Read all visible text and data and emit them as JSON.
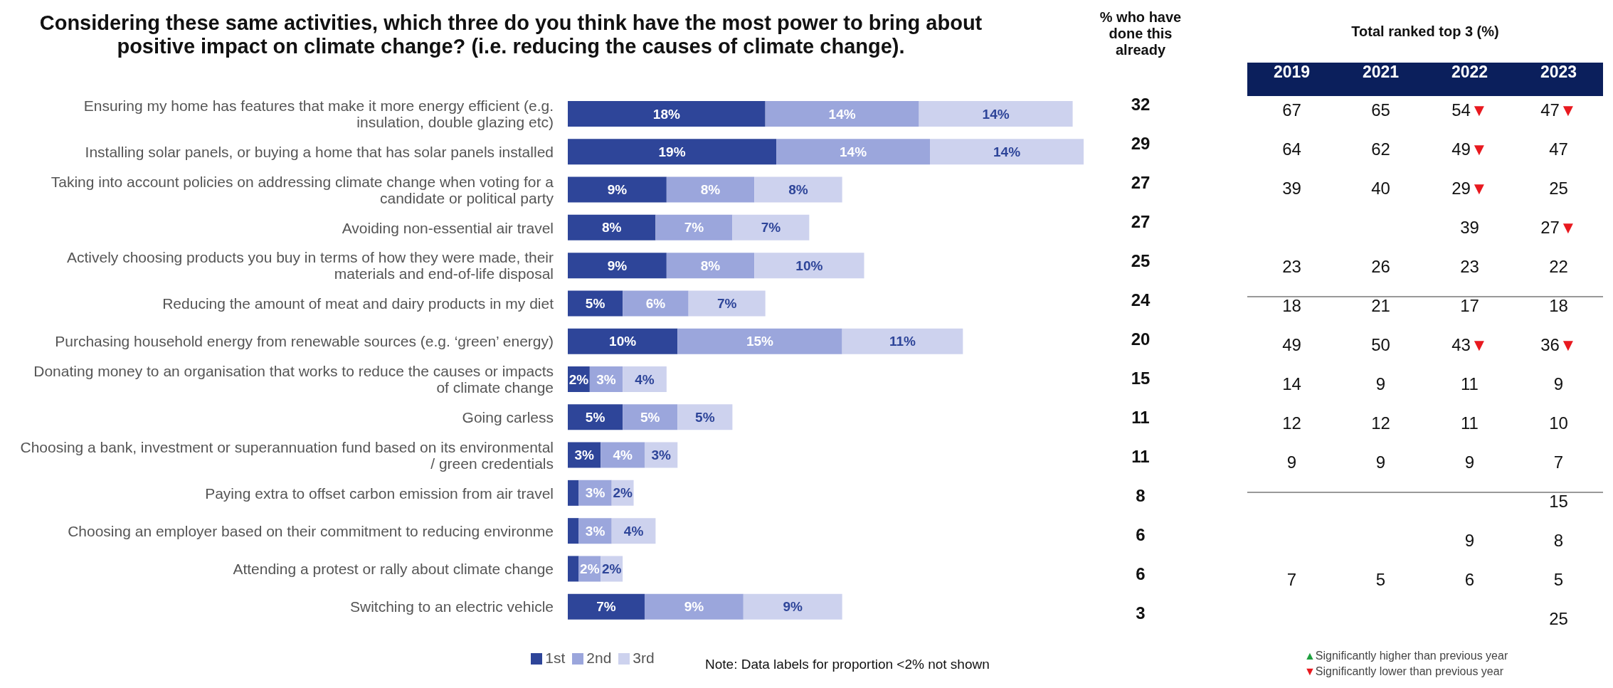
{
  "chart_data": [
    {
      "type": "bar",
      "orientation": "horizontal",
      "stacked": true,
      "legend": "bottom",
      "title": "Considering these same activities, which three do you think have the most power to bring about positive impact on climate change? (i.e. reducing the causes of climate change).",
      "categories": [
        "Ensuring my home has features that make it more energy efficient (e.g. insulation, double glazing etc)",
        "Installing solar panels, or buying a home that has solar panels installed",
        "Taking into account policies on addressing climate change when voting for a candidate or political party",
        "Avoiding non-essential air travel",
        "Actively choosing products you buy in terms of how they were made, their materials and end-of-life disposal",
        "Reducing the amount of meat and dairy products in my diet",
        "Purchasing household energy from renewable sources (e.g. ‘green’ energy)",
        "Donating money to an organisation that works to reduce the causes or impacts of climate change",
        "Going carless",
        "Choosing a bank, investment or superannuation fund based on its environmental / green credentials",
        "Paying extra to offset carbon emission from air travel",
        "Choosing an employer based on their commitment to reducing environme",
        "Attending a protest or rally about climate change",
        "Switching to an electric vehicle"
      ],
      "series": [
        {
          "name": "1st",
          "color": "#2e4599",
          "values": [
            18,
            19,
            9,
            8,
            9,
            5,
            10,
            2,
            5,
            3,
            1,
            1,
            1,
            7
          ],
          "value_labels": [
            "18%",
            "19%",
            "9%",
            "8%",
            "9%",
            "5%",
            "10%",
            "2%",
            "5%",
            "3%",
            null,
            null,
            null,
            "7%"
          ]
        },
        {
          "name": "2nd",
          "color": "#9ba6dc",
          "values": [
            14,
            14,
            8,
            7,
            8,
            6,
            15,
            3,
            5,
            4,
            3,
            3,
            2,
            9
          ],
          "value_labels": [
            "14%",
            "14%",
            "8%",
            "7%",
            "8%",
            "6%",
            "15%",
            "3%",
            "5%",
            "4%",
            "3%",
            "3%",
            "2%",
            "9%"
          ]
        },
        {
          "name": "3rd",
          "color": "#cdd2ee",
          "values": [
            14,
            14,
            8,
            7,
            10,
            7,
            11,
            4,
            5,
            3,
            2,
            4,
            2,
            9
          ],
          "value_labels": [
            "14%",
            "14%",
            "8%",
            "7%",
            "10%",
            "7%",
            "11%",
            "4%",
            "5%",
            "3%",
            "2%",
            "4%",
            "2%",
            "9%"
          ]
        }
      ],
      "annotations": [
        "Note: Data labels for proportion <2% not shown"
      ]
    },
    {
      "type": "other",
      "title": "% who have done this already",
      "data_labels": true,
      "values": [
        32,
        29,
        27,
        27,
        25,
        24,
        20,
        15,
        11,
        11,
        8,
        6,
        6,
        3
      ]
    },
    {
      "type": "other",
      "title": "Total ranked top 3 (%)",
      "annotations": [
        "▲Significantly higher than previous year",
        "▼Significantly lower than previous year"
      ]
    },
    {
      "type": "other",
      "title": "2019",
      "data_labels": true,
      "values": [
        67,
        64,
        39,
        null,
        23,
        18,
        49,
        14,
        12,
        9,
        null,
        null,
        7,
        null
      ]
    },
    {
      "type": "other",
      "title": "2021",
      "data_labels": true,
      "values": [
        65,
        62,
        40,
        null,
        26,
        21,
        50,
        9,
        12,
        9,
        null,
        null,
        5,
        null
      ]
    },
    {
      "type": "other",
      "title": "2022",
      "values": [
        54,
        49,
        29,
        39,
        23,
        17,
        43,
        11,
        11,
        9,
        null,
        9,
        6,
        null
      ],
      "value_labels": [
        "54▼",
        "49▼",
        "29▼",
        "39",
        "23",
        "17",
        "43▼",
        "11",
        "11",
        "9",
        null,
        "9",
        "6",
        null
      ]
    },
    {
      "type": "other",
      "title": "2023",
      "values": [
        47,
        47,
        25,
        27,
        22,
        18,
        36,
        9,
        10,
        7,
        15,
        8,
        5,
        25
      ],
      "value_labels": [
        "47▼",
        "47",
        "25",
        "27▼",
        "22",
        "18",
        "36▼",
        "9",
        "10",
        "7",
        "15",
        "8",
        "5",
        "25"
      ]
    }
  ]
}
